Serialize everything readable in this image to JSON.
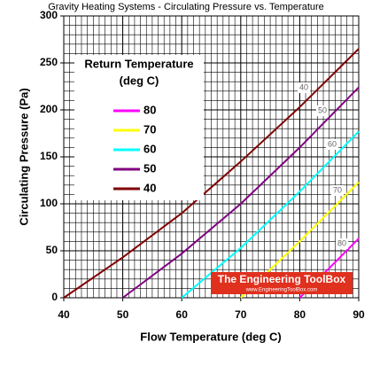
{
  "chart_data": {
    "type": "line",
    "title": "Gravity Heating Systems - Circulating Pressure vs. Temperature",
    "x_label": "Flow Temperature (deg C)",
    "y_label": "Circulating Pressure (Pa)",
    "legend_title": [
      "Return Temperature",
      "(deg C)"
    ],
    "legend": "upper left",
    "xlim": [
      40,
      90
    ],
    "xticks": [
      40,
      50,
      60,
      70,
      80,
      90
    ],
    "ylim": [
      0,
      300
    ],
    "yticks": [
      0,
      50,
      100,
      150,
      200,
      250,
      300
    ],
    "grid": true,
    "minor_grid": {
      "x": 1,
      "y": 10
    },
    "series": [
      {
        "name": "80",
        "color": "#ff00ff",
        "x": [
          80,
          90
        ],
        "values": [
          0,
          63
        ]
      },
      {
        "name": "70",
        "color": "#ffff00",
        "x": [
          70,
          80,
          90
        ],
        "values": [
          0,
          60,
          123
        ]
      },
      {
        "name": "60",
        "color": "#00ffff",
        "x": [
          60,
          70,
          80,
          90
        ],
        "values": [
          0,
          53,
          113,
          177
        ]
      },
      {
        "name": "50",
        "color": "#800080",
        "x": [
          50,
          60,
          70,
          80,
          90
        ],
        "values": [
          0,
          47,
          100,
          160,
          224
        ]
      },
      {
        "name": "40",
        "color": "#800000",
        "x": [
          40,
          50,
          60,
          70,
          80,
          90
        ],
        "values": [
          0,
          43,
          90,
          145,
          203,
          265
        ]
      }
    ],
    "watermark": {
      "title": "The Engineering ToolBox",
      "url": "www.EngineeringToolBox.com"
    }
  }
}
